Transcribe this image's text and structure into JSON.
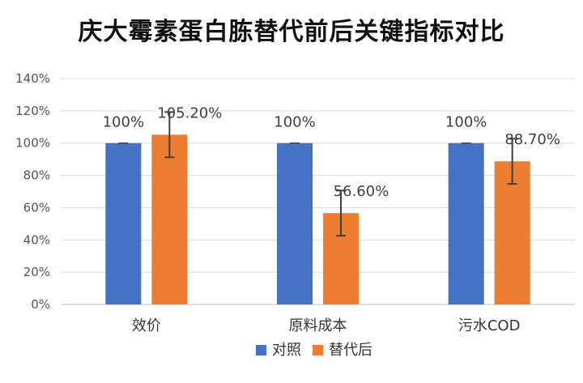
{
  "chart_data": {
    "type": "bar",
    "title": "庆大霉素蛋白胨替代前后关键指标对比",
    "categories": [
      "效价",
      "原料成本",
      "污水COD"
    ],
    "series": [
      {
        "name": "对照",
        "values": [
          100,
          100,
          100
        ],
        "labels": [
          "100%",
          "100%",
          "100%"
        ],
        "error": [
          0,
          0,
          0
        ],
        "color": "#4472C4"
      },
      {
        "name": "替代后",
        "values": [
          105.2,
          56.6,
          88.7
        ],
        "labels": [
          "105.20%",
          "56.60%",
          "88.70%"
        ],
        "error": [
          14,
          14,
          14
        ],
        "color": "#ED7D31"
      }
    ],
    "ylim": [
      0,
      140
    ],
    "yticks": [
      "0%",
      "20%",
      "40%",
      "60%",
      "80%",
      "100%",
      "120%",
      "140%"
    ],
    "grid": true,
    "legend": "bottom"
  }
}
